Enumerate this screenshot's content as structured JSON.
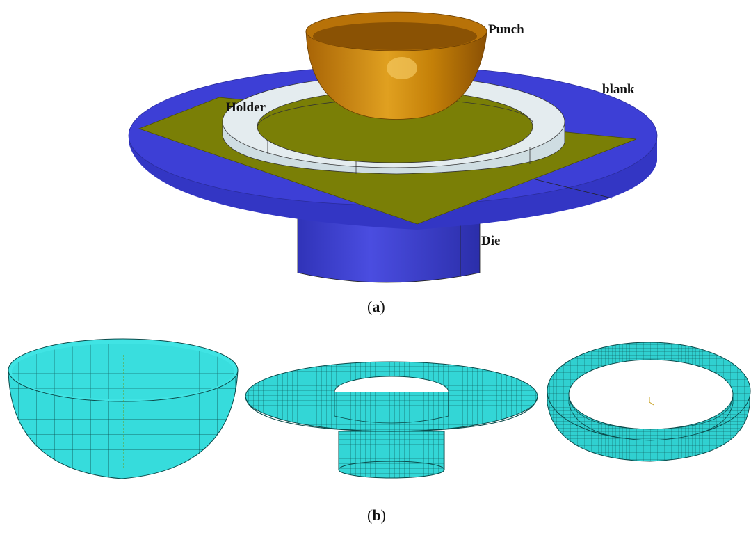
{
  "labels": {
    "punch": "Punch",
    "blank": "blank",
    "holder": "Holder",
    "die": "Die"
  },
  "captions": {
    "a_letter": "a",
    "b_letter": "b"
  },
  "colors": {
    "die": "#3d3fd6",
    "die_side": "#3336c4",
    "blank": "#7a7f06",
    "holder": "#dfe8ec",
    "punch": "#c87f10",
    "mesh": "#33d6d6",
    "mesh_line": "#0b4a4a"
  }
}
